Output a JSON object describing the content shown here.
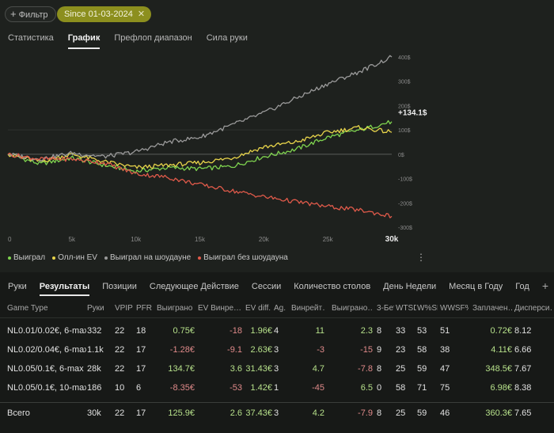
{
  "filter": {
    "label": "Фильтр",
    "date_chip": "Since 01-03-2024"
  },
  "top_tabs": [
    {
      "label": "Статистика",
      "active": false
    },
    {
      "label": "График",
      "active": true
    },
    {
      "label": "Префлоп диапазон",
      "active": false
    },
    {
      "label": "Сила руки",
      "active": false
    }
  ],
  "chart_data": {
    "type": "line",
    "x_ticks": [
      "0",
      "5k",
      "10k",
      "15k",
      "20k",
      "25k",
      "30k"
    ],
    "x_range": [
      0,
      30000
    ],
    "y_ticks": [
      "400$",
      "300$",
      "200$",
      "100$",
      "0$",
      "-100$",
      "-200$",
      "-300$"
    ],
    "y_range": [
      -300,
      400
    ],
    "current_value_label": "+134.1$",
    "series": [
      {
        "name": "Выиграл",
        "color": "#7fd44f",
        "x": [
          0,
          2500,
          5000,
          7500,
          10000,
          12500,
          15000,
          17500,
          20000,
          22500,
          25000,
          27500,
          30000
        ],
        "y": [
          0,
          -40,
          -15,
          -45,
          -70,
          -55,
          -60,
          -50,
          -10,
          20,
          70,
          100,
          134
        ]
      },
      {
        "name": "Олл-ин EV",
        "color": "#e8d44a",
        "x": [
          0,
          2500,
          5000,
          7500,
          10000,
          12500,
          15000,
          17500,
          20000,
          22500,
          25000,
          27500,
          30000
        ],
        "y": [
          0,
          -30,
          0,
          -30,
          -55,
          -45,
          -35,
          -15,
          30,
          50,
          90,
          110,
          90
        ]
      },
      {
        "name": "Выиграл на шоудауне",
        "color": "#9a9a9a",
        "x": [
          0,
          2500,
          5000,
          7500,
          10000,
          12500,
          15000,
          17500,
          20000,
          22500,
          25000,
          27500,
          30000
        ],
        "y": [
          0,
          -20,
          5,
          -10,
          10,
          50,
          70,
          120,
          170,
          230,
          290,
          340,
          400
        ]
      },
      {
        "name": "Выиграл без шоудауна",
        "color": "#e05a4a",
        "x": [
          0,
          2500,
          5000,
          7500,
          10000,
          12500,
          15000,
          17500,
          20000,
          22500,
          25000,
          27500,
          30000
        ],
        "y": [
          0,
          -20,
          -20,
          -35,
          -80,
          -95,
          -125,
          -150,
          -175,
          -195,
          -215,
          -230,
          -255
        ]
      }
    ]
  },
  "legend": [
    {
      "label": "Выиграл",
      "color": "#7fd44f"
    },
    {
      "label": "Олл-ин EV",
      "color": "#e8d44a"
    },
    {
      "label": "Выиграл на шоудауне",
      "color": "#9a9a9a"
    },
    {
      "label": "Выиграл без шоудауна",
      "color": "#e05a4a"
    }
  ],
  "bottom_tabs": [
    {
      "label": "Руки",
      "active": false
    },
    {
      "label": "Результаты",
      "active": true
    },
    {
      "label": "Позиции",
      "active": false
    },
    {
      "label": "Следующее Действие",
      "active": false
    },
    {
      "label": "Сессии",
      "active": false
    },
    {
      "label": "Количество столов",
      "active": false
    },
    {
      "label": "День Недели",
      "active": false
    },
    {
      "label": "Месяц в Году",
      "active": false
    },
    {
      "label": "Год",
      "active": false
    }
  ],
  "table": {
    "headers": [
      "Game Type",
      "Руки",
      "VPIP",
      "PFR",
      "Выиграно",
      "EV Винре…",
      "EV diff.",
      "Ag.",
      "Винрейт…",
      "Выиграно…",
      "3-Бет",
      "WTSD",
      "W%SD",
      "WWSF%",
      "Заплачен…",
      "Дисперси…"
    ],
    "rows": [
      [
        "NL0.01/0.02€, 6-max",
        "332",
        "22",
        "18",
        "0.75€",
        "-18",
        "1.96€",
        "4",
        "11",
        "2.3",
        "8",
        "33",
        "53",
        "51",
        "0.72€",
        "8.12"
      ],
      [
        "NL0.02/0.04€, 6-max",
        "1.1k",
        "22",
        "17",
        "-1.28€",
        "-9.1",
        "2.63€",
        "3",
        "-3",
        "-15",
        "9",
        "23",
        "58",
        "38",
        "4.11€",
        "6.66"
      ],
      [
        "NL0.05/0.1€, 6-max",
        "28k",
        "22",
        "17",
        "134.7€",
        "3.6",
        "31.43€",
        "3",
        "4.7",
        "-7.8",
        "8",
        "25",
        "59",
        "47",
        "348.5€",
        "7.67"
      ],
      [
        "NL0.05/0.1€, 10-max",
        "186",
        "10",
        "6",
        "-8.35€",
        "-53",
        "1.42€",
        "1",
        "-45",
        "6.5",
        "0",
        "58",
        "71",
        "75",
        "6.98€",
        "8.38"
      ]
    ],
    "total": [
      "Всего",
      "30k",
      "22",
      "17",
      "125.9€",
      "2.6",
      "37.43€",
      "3",
      "4.2",
      "-7.9",
      "8",
      "25",
      "59",
      "46",
      "360.3€",
      "7.65"
    ]
  }
}
